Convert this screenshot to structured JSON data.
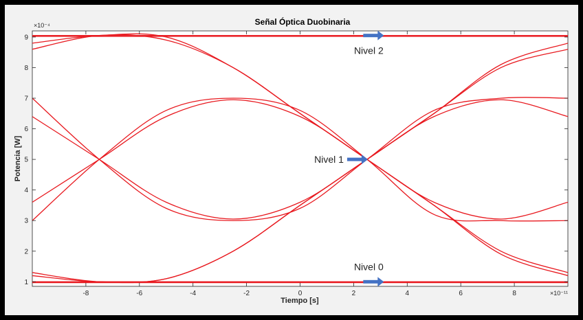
{
  "chart_data": {
    "type": "line",
    "title": "Señal Óptica Duobinaria",
    "xlabel": "Tiempo [s]",
    "ylabel": "Potencia [W]",
    "x_multiplier_label": "×10⁻¹¹",
    "y_multiplier_label": "×10⁻⁴",
    "xlim": [
      -10,
      10
    ],
    "ylim": [
      0.85,
      9.2
    ],
    "xticks": [
      -8,
      -6,
      -4,
      -2,
      0,
      2,
      4,
      6,
      8
    ],
    "yticks": [
      1,
      2,
      3,
      4,
      5,
      6,
      7,
      8,
      9
    ],
    "grid": false,
    "line_color": "#e8191f",
    "levels": {
      "high": 9.05,
      "mid": 5.0,
      "low": 1.0
    },
    "crossing_times": [
      -7.5,
      2.5
    ],
    "series": [
      {
        "x": [
          -10,
          -7.5,
          -5,
          -2.5,
          0,
          2.5,
          5,
          7.5,
          10
        ],
        "values": [
          8.8,
          9.05,
          9.0,
          8.0,
          6.5,
          5.0,
          3.5,
          2.0,
          1.3
        ]
      },
      {
        "x": [
          -10,
          -7.5,
          -5,
          -2.5,
          0,
          2.5,
          5,
          7.5,
          10
        ],
        "values": [
          8.6,
          9.05,
          8.9,
          8.0,
          6.5,
          5.0,
          3.5,
          1.9,
          1.2
        ]
      },
      {
        "x": [
          -10,
          -7.5,
          -5,
          -2.5,
          0,
          2.5,
          5,
          7.5,
          10
        ],
        "values": [
          1.2,
          1.0,
          1.1,
          2.0,
          3.5,
          5.0,
          6.5,
          8.1,
          8.8
        ]
      },
      {
        "x": [
          -10,
          -7.5,
          -5,
          -2.5,
          0,
          2.5,
          5,
          7.5,
          10
        ],
        "values": [
          1.3,
          1.0,
          1.1,
          2.0,
          3.5,
          5.0,
          6.5,
          8.0,
          8.6
        ]
      },
      {
        "x": [
          -10,
          -7.5,
          -5,
          -2.5,
          0,
          2.5,
          5,
          7.5,
          10
        ],
        "values": [
          3.6,
          5.0,
          6.4,
          6.95,
          6.4,
          5.0,
          3.6,
          3.05,
          3.6
        ]
      },
      {
        "x": [
          -10,
          -7.5,
          -5,
          -2.5,
          0,
          2.5,
          5,
          7.5,
          10
        ],
        "values": [
          3.0,
          5.0,
          6.6,
          7.0,
          6.6,
          5.0,
          3.2,
          3.0,
          3.0
        ]
      },
      {
        "x": [
          -10,
          -7.5,
          -5,
          -2.5,
          0,
          2.5,
          5,
          7.5,
          10
        ],
        "values": [
          6.4,
          5.0,
          3.6,
          3.05,
          3.6,
          5.0,
          6.4,
          6.95,
          6.4
        ]
      },
      {
        "x": [
          -10,
          -7.5,
          -5,
          -2.5,
          0,
          2.5,
          5,
          7.5,
          10
        ],
        "values": [
          7.0,
          5.0,
          3.4,
          3.0,
          3.4,
          5.0,
          6.6,
          7.0,
          7.0
        ]
      },
      {
        "x": [
          -10,
          10
        ],
        "values": [
          9.05,
          9.05
        ]
      },
      {
        "x": [
          -10,
          10
        ],
        "values": [
          9.02,
          9.02
        ]
      },
      {
        "x": [
          -10,
          10
        ],
        "values": [
          1.0,
          1.0
        ]
      },
      {
        "x": [
          -10,
          10
        ],
        "values": [
          0.97,
          0.97
        ]
      }
    ],
    "annotations": [
      {
        "text": "Nivel 2",
        "x": 3,
        "y": 9.05
      },
      {
        "text": "Nivel 1",
        "x": 2.4,
        "y": 5.0
      },
      {
        "text": "Nivel 0",
        "x": 3,
        "y": 1.0
      }
    ],
    "annotation_arrow_color": "#4472c4"
  }
}
